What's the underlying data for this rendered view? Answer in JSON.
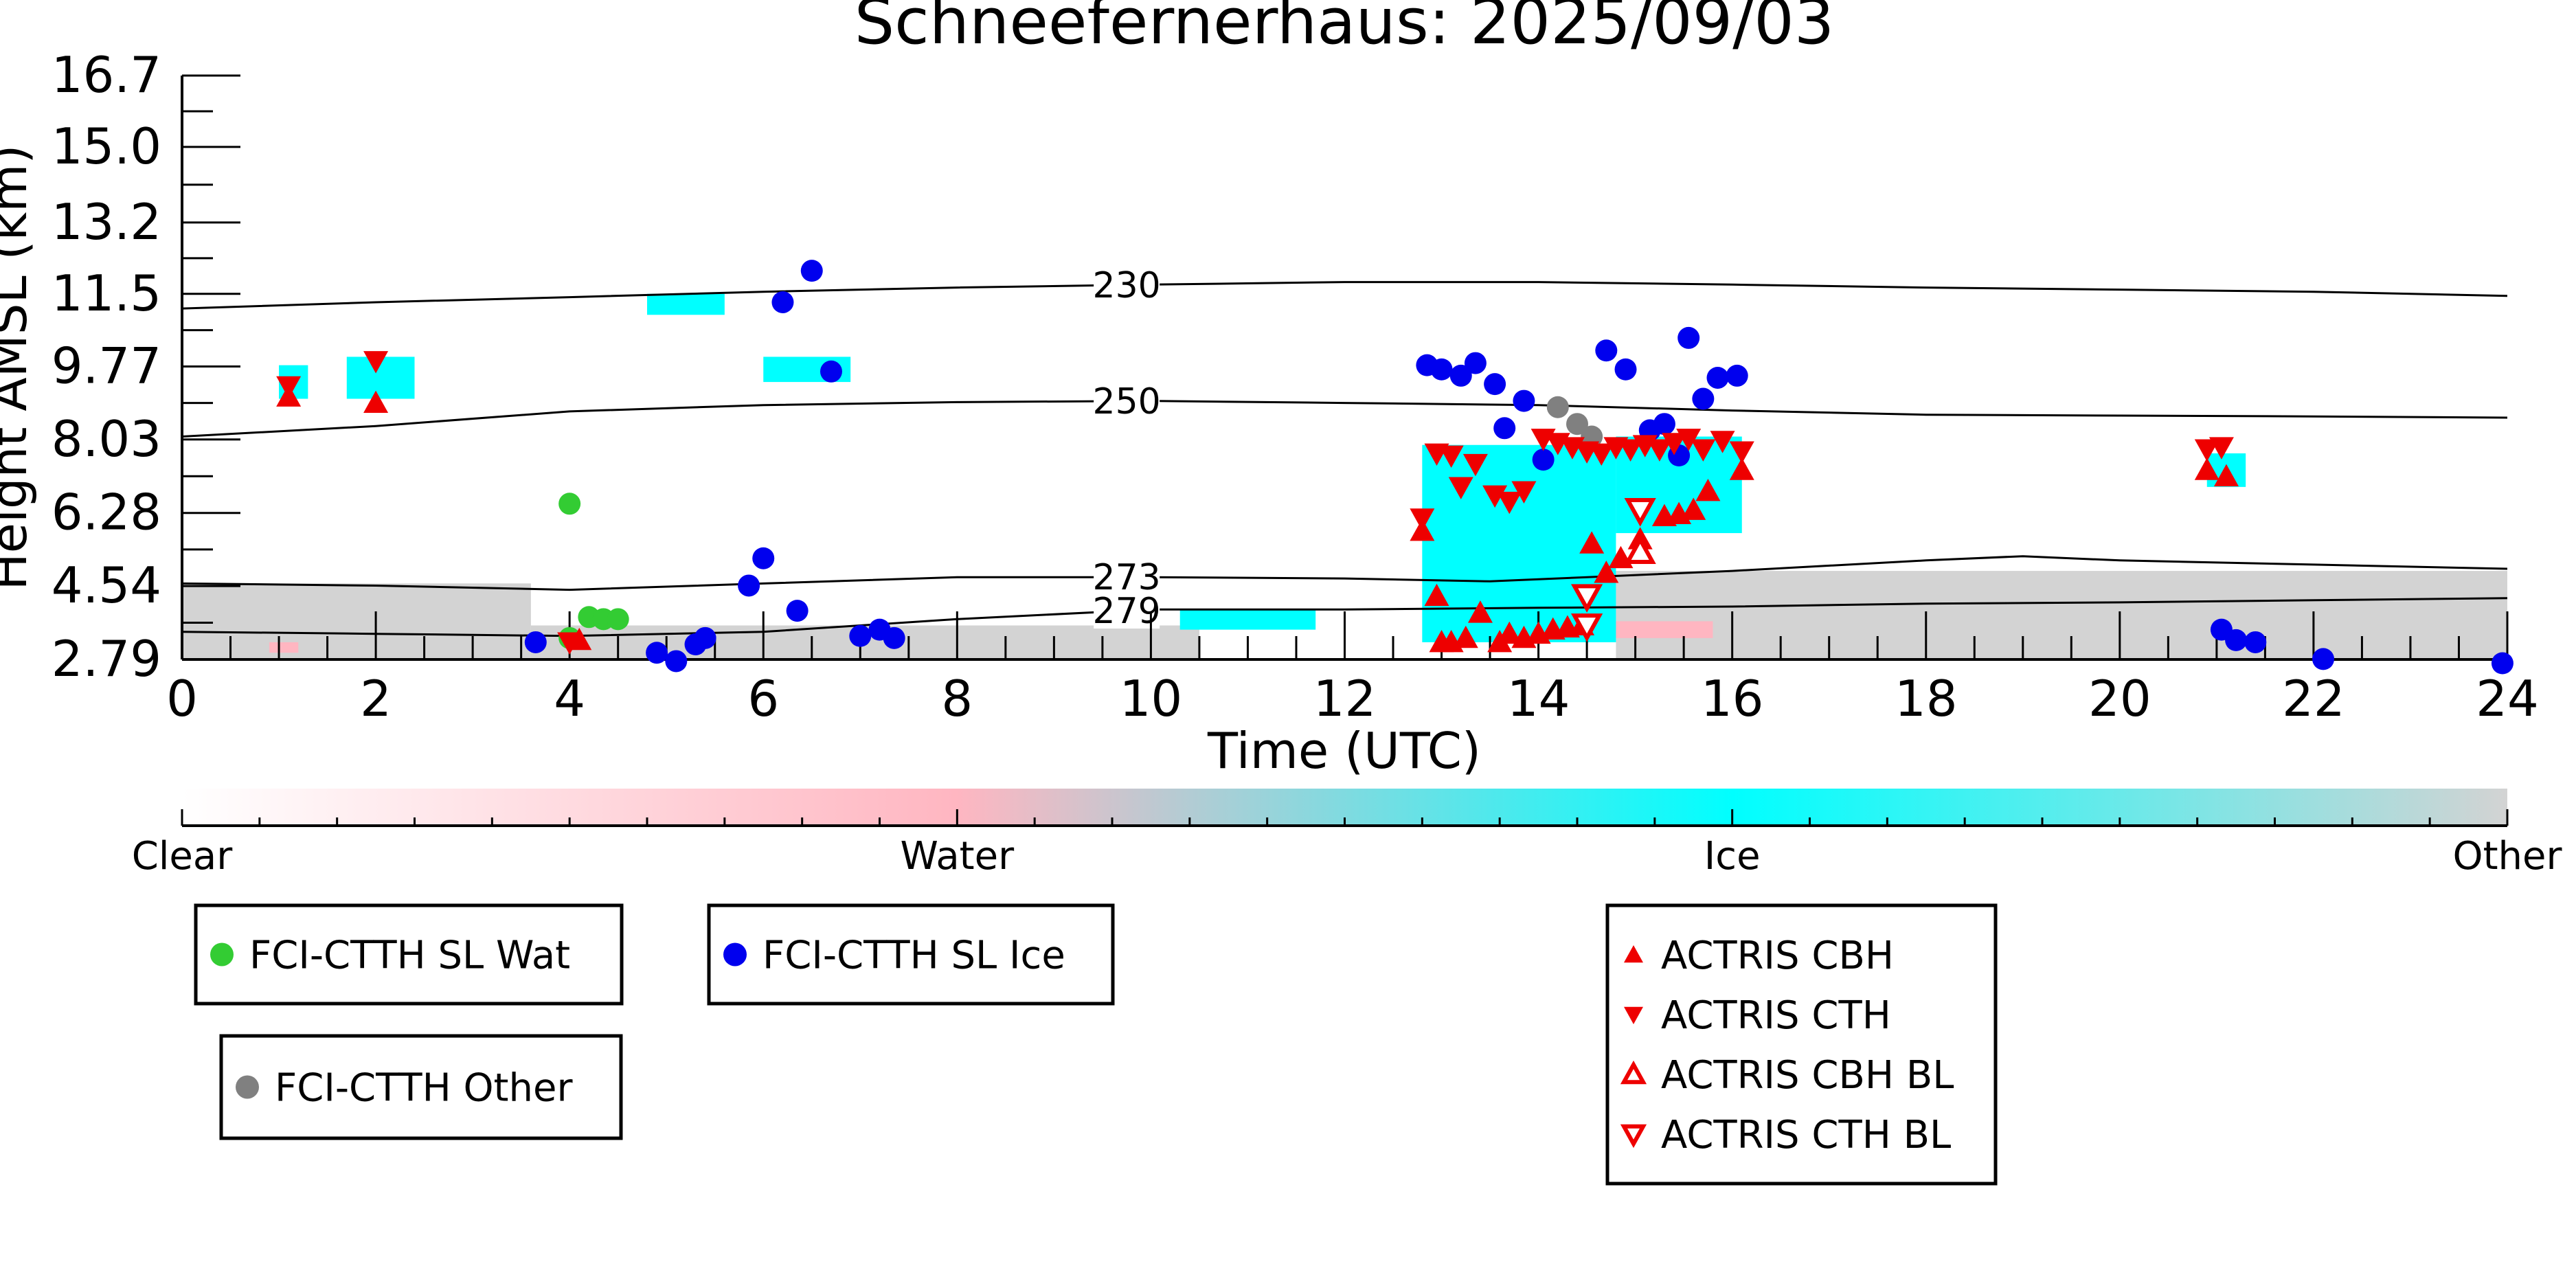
{
  "chart_data": {
    "type": "scatter",
    "title": "Schneefernerhaus: 2025/09/03",
    "xlabel": "Time (UTC)",
    "ylabel": "Height AMSL (km)",
    "xlim": [
      0,
      24
    ],
    "ylim": [
      2.79,
      16.7
    ],
    "x_ticks": [
      0,
      2,
      4,
      6,
      8,
      10,
      12,
      14,
      16,
      18,
      20,
      22,
      24
    ],
    "y_ticks": [
      "2.79",
      "4.54",
      "6.28",
      "8.03",
      "9.77",
      "11.5",
      "13.2",
      "15.0",
      "16.7"
    ],
    "colorbar": {
      "labels": [
        "Clear",
        "Water",
        "Ice",
        "Other"
      ],
      "colors": [
        "#ffffff",
        "#ffb6c1",
        "#00ffff",
        "#d3d3d3"
      ]
    },
    "contours": [
      {
        "label": "230",
        "label_x": 9.75,
        "points": [
          [
            0,
            11.15
          ],
          [
            2,
            11.3
          ],
          [
            4,
            11.42
          ],
          [
            6,
            11.55
          ],
          [
            8,
            11.65
          ],
          [
            10,
            11.72
          ],
          [
            12,
            11.78
          ],
          [
            14,
            11.78
          ],
          [
            16,
            11.72
          ],
          [
            18,
            11.65
          ],
          [
            20,
            11.6
          ],
          [
            22,
            11.55
          ],
          [
            24,
            11.45
          ]
        ]
      },
      {
        "label": "250",
        "label_x": 9.75,
        "points": [
          [
            0,
            8.1
          ],
          [
            2,
            8.35
          ],
          [
            4,
            8.7
          ],
          [
            6,
            8.85
          ],
          [
            8,
            8.92
          ],
          [
            10,
            8.95
          ],
          [
            12,
            8.9
          ],
          [
            14,
            8.85
          ],
          [
            16,
            8.72
          ],
          [
            18,
            8.62
          ],
          [
            20,
            8.6
          ],
          [
            22,
            8.58
          ],
          [
            24,
            8.55
          ]
        ]
      },
      {
        "label": "273",
        "label_x": 9.75,
        "points": [
          [
            0,
            4.6
          ],
          [
            2,
            4.55
          ],
          [
            4,
            4.45
          ],
          [
            6,
            4.6
          ],
          [
            8,
            4.75
          ],
          [
            10,
            4.75
          ],
          [
            12,
            4.72
          ],
          [
            13.5,
            4.65
          ],
          [
            14.5,
            4.75
          ],
          [
            16,
            4.9
          ],
          [
            18,
            5.15
          ],
          [
            19,
            5.25
          ],
          [
            20,
            5.15
          ],
          [
            22,
            5.05
          ],
          [
            24,
            4.95
          ]
        ]
      },
      {
        "label": "279",
        "label_x": 9.75,
        "points": [
          [
            0,
            3.45
          ],
          [
            2,
            3.4
          ],
          [
            4,
            3.35
          ],
          [
            6,
            3.45
          ],
          [
            8,
            3.75
          ],
          [
            10,
            3.98
          ],
          [
            12,
            3.98
          ],
          [
            14,
            4.02
          ],
          [
            16,
            4.05
          ],
          [
            18,
            4.12
          ],
          [
            20,
            4.15
          ],
          [
            22,
            4.2
          ],
          [
            24,
            4.25
          ]
        ]
      }
    ],
    "background_fields": {
      "other": [
        [
          0,
          2.79,
          3.6,
          4.6
        ],
        [
          2.3,
          2.79,
          3.6,
          4.6
        ],
        [
          3.6,
          2.79,
          10.5,
          3.6
        ],
        [
          14.8,
          2.79,
          24,
          4.9
        ]
      ],
      "ice": [
        [
          12.8,
          3.2,
          14.8,
          7.9
        ],
        [
          14.8,
          5.8,
          16.1,
          8.1
        ],
        [
          10.3,
          3.5,
          11.7,
          4.0
        ],
        [
          1.0,
          9.0,
          1.3,
          9.8
        ],
        [
          1.7,
          9.0,
          2.4,
          10.0
        ],
        [
          20.9,
          6.9,
          21.3,
          7.7
        ],
        [
          4.8,
          11.0,
          5.6,
          11.5
        ],
        [
          6.0,
          9.4,
          6.9,
          10.0
        ]
      ],
      "water": [
        [
          13.5,
          3.3,
          15.8,
          3.7
        ],
        [
          0.9,
          2.95,
          1.2,
          3.2
        ]
      ]
    },
    "series": [
      {
        "name": "FCI-CTTH SL Wat",
        "color": "#33cc33",
        "marker": "circle",
        "points": [
          [
            4.0,
            6.5
          ],
          [
            4.2,
            3.8
          ],
          [
            4.35,
            3.75
          ],
          [
            4.5,
            3.75
          ],
          [
            4.0,
            3.3
          ]
        ]
      },
      {
        "name": "FCI-CTTH SL Ice",
        "color": "#0000ee",
        "marker": "circle",
        "points": [
          [
            3.65,
            3.2
          ],
          [
            4.9,
            2.95
          ],
          [
            5.1,
            2.75
          ],
          [
            5.3,
            3.15
          ],
          [
            5.4,
            3.3
          ],
          [
            5.85,
            4.55
          ],
          [
            6.0,
            5.2
          ],
          [
            6.35,
            3.95
          ],
          [
            6.5,
            12.05
          ],
          [
            6.2,
            11.3
          ],
          [
            6.7,
            9.65
          ],
          [
            7.0,
            3.35
          ],
          [
            7.2,
            3.5
          ],
          [
            7.35,
            3.3
          ],
          [
            12.85,
            9.8
          ],
          [
            13.0,
            9.7
          ],
          [
            13.2,
            9.55
          ],
          [
            13.35,
            9.85
          ],
          [
            13.55,
            9.35
          ],
          [
            13.85,
            8.95
          ],
          [
            14.05,
            7.55
          ],
          [
            13.65,
            8.3
          ],
          [
            14.7,
            10.15
          ],
          [
            14.9,
            9.7
          ],
          [
            15.15,
            8.25
          ],
          [
            15.3,
            8.4
          ],
          [
            15.45,
            7.65
          ],
          [
            15.55,
            10.45
          ],
          [
            15.7,
            9.0
          ],
          [
            15.85,
            9.5
          ],
          [
            16.05,
            9.55
          ],
          [
            21.05,
            3.5
          ],
          [
            21.2,
            3.25
          ],
          [
            21.4,
            3.2
          ],
          [
            22.1,
            2.8
          ],
          [
            23.95,
            2.7
          ]
        ]
      },
      {
        "name": "FCI-CTTH Other",
        "color": "#808080",
        "marker": "circle",
        "points": [
          [
            14.2,
            8.8
          ],
          [
            14.4,
            8.4
          ],
          [
            14.55,
            8.1
          ]
        ]
      },
      {
        "name": "ACTRIS CBH",
        "color": "#ee0000",
        "marker": "triangle-up",
        "points": [
          [
            1.1,
            9.05
          ],
          [
            2.0,
            8.9
          ],
          [
            4.1,
            3.25
          ],
          [
            12.8,
            5.85
          ],
          [
            12.95,
            4.3
          ],
          [
            13.0,
            3.2
          ],
          [
            13.1,
            3.2
          ],
          [
            13.25,
            3.3
          ],
          [
            13.4,
            3.9
          ],
          [
            13.6,
            3.2
          ],
          [
            13.7,
            3.4
          ],
          [
            13.85,
            3.3
          ],
          [
            14.0,
            3.4
          ],
          [
            14.15,
            3.5
          ],
          [
            14.3,
            3.55
          ],
          [
            14.45,
            3.6
          ],
          [
            14.55,
            5.55
          ],
          [
            14.7,
            4.85
          ],
          [
            14.85,
            5.2
          ],
          [
            15.05,
            5.65
          ],
          [
            15.3,
            6.2
          ],
          [
            15.45,
            6.25
          ],
          [
            15.6,
            6.35
          ],
          [
            15.75,
            6.8
          ],
          [
            16.1,
            7.3
          ],
          [
            20.9,
            7.3
          ],
          [
            21.1,
            7.15
          ]
        ]
      },
      {
        "name": "ACTRIS CTH",
        "color": "#ee0000",
        "marker": "triangle-down",
        "points": [
          [
            1.1,
            9.3
          ],
          [
            2.0,
            9.9
          ],
          [
            4.0,
            3.2
          ],
          [
            12.8,
            6.15
          ],
          [
            12.95,
            7.7
          ],
          [
            13.1,
            7.65
          ],
          [
            13.2,
            6.9
          ],
          [
            13.35,
            7.45
          ],
          [
            13.55,
            6.7
          ],
          [
            13.7,
            6.55
          ],
          [
            13.85,
            6.8
          ],
          [
            14.05,
            8.05
          ],
          [
            14.2,
            7.95
          ],
          [
            14.35,
            7.85
          ],
          [
            14.5,
            7.75
          ],
          [
            14.65,
            7.7
          ],
          [
            14.8,
            7.85
          ],
          [
            14.95,
            7.8
          ],
          [
            15.1,
            7.9
          ],
          [
            15.25,
            7.8
          ],
          [
            15.4,
            7.95
          ],
          [
            15.55,
            8.05
          ],
          [
            15.7,
            7.8
          ],
          [
            15.9,
            8.0
          ],
          [
            16.1,
            7.75
          ],
          [
            20.9,
            7.8
          ],
          [
            21.05,
            7.85
          ]
        ]
      },
      {
        "name": "ACTRIS CBH BL",
        "color": "#ee0000",
        "marker": "triangle-up-open",
        "points": [
          [
            15.05,
            5.35
          ]
        ]
      },
      {
        "name": "ACTRIS CTH BL",
        "color": "#ee0000",
        "marker": "triangle-down-open",
        "points": [
          [
            14.5,
            4.3
          ],
          [
            14.5,
            3.6
          ],
          [
            15.05,
            6.35
          ]
        ]
      }
    ],
    "legend_boxes": [
      [
        "FCI-CTTH SL Wat"
      ],
      [
        "FCI-CTTH SL Ice"
      ],
      [
        "FCI-CTTH Other"
      ],
      [
        "ACTRIS CBH",
        "ACTRIS CTH",
        "ACTRIS CBH BL",
        "ACTRIS CTH BL"
      ]
    ]
  }
}
